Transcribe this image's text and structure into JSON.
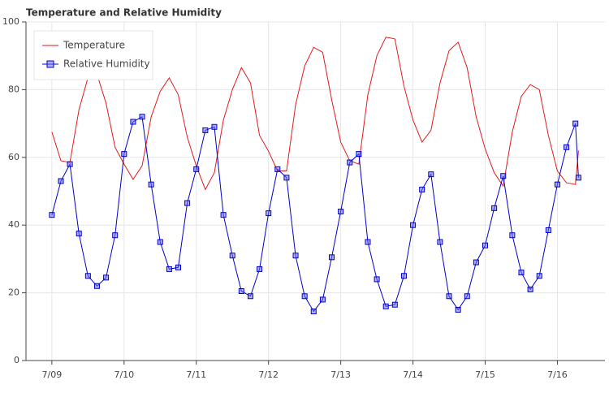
{
  "chart_data": {
    "type": "line",
    "title": "Temperature and Relative Humidity",
    "x": [
      0,
      3,
      6,
      9,
      12,
      15,
      18,
      21,
      24,
      27,
      30,
      33,
      36,
      39,
      42,
      45,
      48,
      51,
      54,
      57,
      60,
      63,
      66,
      69,
      72,
      75,
      78,
      81,
      84,
      87,
      90,
      93,
      96,
      99,
      102,
      105,
      108,
      111,
      114,
      117,
      120,
      123,
      126,
      129,
      132,
      135,
      138,
      141,
      144,
      147,
      150,
      153,
      156,
      159,
      162,
      165,
      168,
      171,
      174,
      175
    ],
    "series": [
      {
        "name": "Temperature",
        "color": "#e31a1c",
        "marker": "none",
        "values": [
          67.5,
          59,
          58.5,
          74,
          83.5,
          84.5,
          76,
          63,
          58,
          53.5,
          57.5,
          72,
          79.5,
          83.5,
          78.5,
          66,
          57.5,
          50.5,
          55.5,
          71,
          80,
          86.5,
          82,
          66.5,
          61.8,
          56,
          56,
          75.5,
          87,
          92.5,
          91,
          77,
          64.5,
          59,
          58,
          78.5,
          90,
          95.5,
          95,
          81,
          71,
          64.5,
          68,
          82,
          91.5,
          94,
          86.5,
          72,
          62.5,
          55.5,
          51.5,
          67.5,
          78,
          81.5,
          80,
          66.5,
          56,
          52.5,
          52,
          62
        ]
      },
      {
        "name": "Relative Humidity",
        "color": "#0000cc",
        "marker": "square",
        "values": [
          43,
          53,
          58,
          37.5,
          25,
          22,
          24.5,
          37,
          61,
          70.5,
          72,
          52,
          35,
          27,
          27.5,
          46.5,
          56.5,
          68,
          69,
          43,
          31,
          20.5,
          19,
          27,
          43.5,
          56.5,
          54,
          31,
          19,
          14.5,
          18,
          30.5,
          44,
          58.5,
          61,
          35,
          24,
          16,
          16.5,
          25,
          40,
          50.5,
          55,
          35,
          19,
          15,
          19,
          29,
          34,
          45,
          54.5,
          37,
          26,
          21,
          25,
          38.5,
          52,
          63,
          70,
          54
        ]
      }
    ],
    "xlim": [
      -8.6,
      183.8
    ],
    "xticks": [
      {
        "value": 0,
        "label": "7/09"
      },
      {
        "value": 24,
        "label": "7/10"
      },
      {
        "value": 48,
        "label": "7/11"
      },
      {
        "value": 72,
        "label": "7/12"
      },
      {
        "value": 96,
        "label": "7/13"
      },
      {
        "value": 120,
        "label": "7/14"
      },
      {
        "value": 144,
        "label": "7/15"
      },
      {
        "value": 168,
        "label": "7/16"
      }
    ],
    "ylim": [
      0,
      100
    ],
    "yticks": [
      0,
      20,
      40,
      60,
      80,
      100
    ],
    "grid": true,
    "legend": "top_left"
  }
}
